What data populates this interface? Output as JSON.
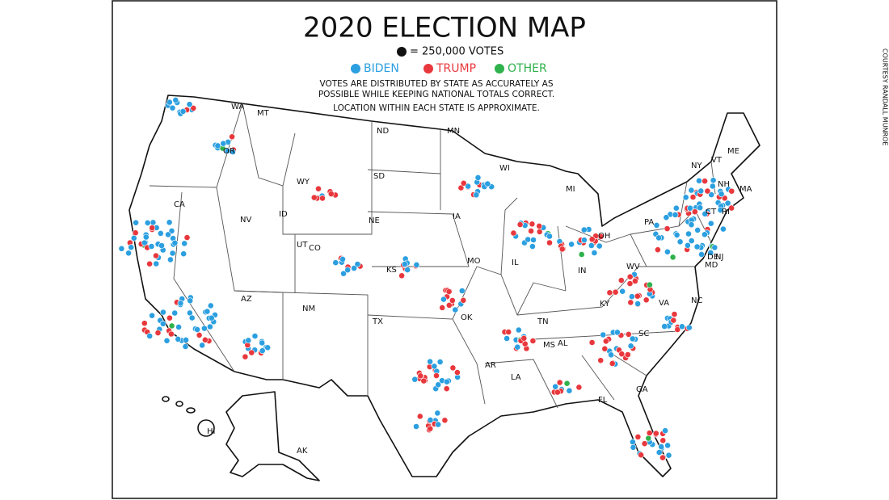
{
  "title": "2020 ELECTION MAP",
  "scale": "= 250,000 VOTES",
  "legend": [
    {
      "label": "BIDEN",
      "color": "#2b9fe0"
    },
    {
      "label": "TRUMP",
      "color": "#e8383d"
    },
    {
      "label": "OTHER",
      "color": "#2fb24c"
    }
  ],
  "notes": [
    "VOTES ARE DISTRIBUTED BY STATE AS ACCURATELY AS",
    "POSSIBLE WHILE KEEPING NATIONAL TOTALS CORRECT.",
    "LOCATION WITHIN EACH STATE IS APPROXIMATE."
  ],
  "states": [
    "WA",
    "MT",
    "ND",
    "MN",
    "OR",
    "WI",
    "MI",
    "NY",
    "VT",
    "ME",
    "NH",
    "MA",
    "SD",
    "WY",
    "ID",
    "IA",
    "NE",
    "NV",
    "UT",
    "CO",
    "CA",
    "PA",
    "OH",
    "IN",
    "IL",
    "NJ",
    "DE",
    "MD",
    "CT",
    "RI",
    "KS",
    "MO",
    "WV",
    "VA",
    "KY",
    "AZ",
    "NM",
    "OK",
    "TN",
    "NC",
    "SC",
    "TX",
    "AR",
    "MS",
    "AL",
    "GA",
    "LA",
    "FL",
    "HI",
    "AK"
  ],
  "credit": "COURTESY RANDALL MUNROE"
}
